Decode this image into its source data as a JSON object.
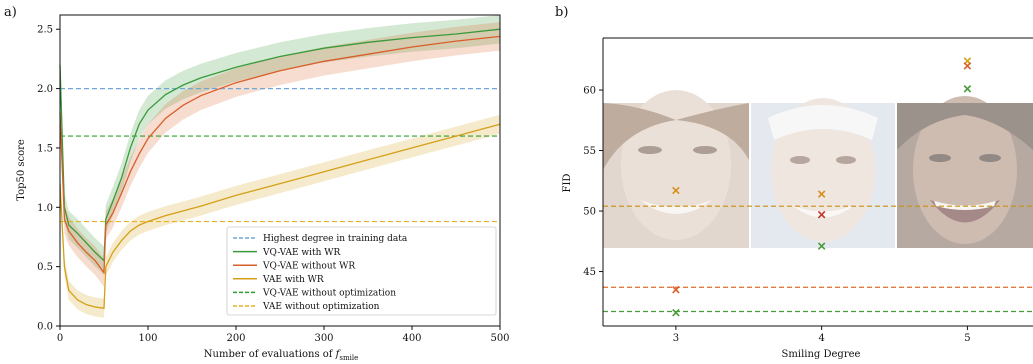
{
  "panel_labels": {
    "a": "a)",
    "b": "b)"
  },
  "chart_data": [
    {
      "type": "line",
      "xlabel_prefix": "Number of evaluations of ",
      "xlabel_symbol": "f",
      "xlabel_subscript": "smile",
      "ylabel": "Top50 score",
      "xlim": [
        0,
        500
      ],
      "ylim": [
        0,
        2.62
      ],
      "xticks": [
        0,
        100,
        200,
        300,
        400,
        500
      ],
      "yticks": [
        0.0,
        0.5,
        1.0,
        1.5,
        2.0,
        2.5
      ],
      "ytick_labels": [
        "0.0",
        "0.5",
        "1.0",
        "1.5",
        "2.0",
        "2.5"
      ],
      "grid": false,
      "legend_position": "lower-right",
      "hlines": [
        {
          "name": "Highest degree in training data",
          "y": 2.0,
          "color": "#6fa8d8",
          "dash": true
        },
        {
          "name": "VQ-VAE without optimization",
          "y": 1.6,
          "color": "#2ca02c",
          "dash": true
        },
        {
          "name": "VAE without optimization",
          "y": 0.88,
          "color": "#e6b422",
          "dash": true
        }
      ],
      "series": [
        {
          "name": "VQ-VAE with WR",
          "color": "#3a9a3a",
          "x": [
            0,
            5,
            10,
            20,
            30,
            40,
            50,
            52,
            60,
            70,
            80,
            90,
            100,
            120,
            140,
            160,
            200,
            250,
            300,
            350,
            400,
            450,
            500
          ],
          "y": [
            2.2,
            1.0,
            0.85,
            0.78,
            0.7,
            0.62,
            0.55,
            0.9,
            1.05,
            1.25,
            1.5,
            1.7,
            1.82,
            1.95,
            2.03,
            2.09,
            2.18,
            2.27,
            2.34,
            2.39,
            2.43,
            2.46,
            2.5
          ],
          "band": 0.12
        },
        {
          "name": "VQ-VAE without WR",
          "color": "#d95f2a",
          "x": [
            0,
            5,
            10,
            20,
            30,
            40,
            50,
            52,
            60,
            70,
            80,
            90,
            100,
            120,
            140,
            160,
            200,
            250,
            300,
            350,
            400,
            450,
            500
          ],
          "y": [
            1.8,
            0.9,
            0.8,
            0.7,
            0.62,
            0.55,
            0.45,
            0.85,
            0.95,
            1.12,
            1.3,
            1.45,
            1.58,
            1.75,
            1.86,
            1.94,
            2.05,
            2.15,
            2.23,
            2.29,
            2.35,
            2.4,
            2.44
          ],
          "band": 0.12
        },
        {
          "name": "VAE with WR",
          "color": "#d4a017",
          "x": [
            0,
            5,
            10,
            20,
            30,
            40,
            50,
            52,
            60,
            70,
            80,
            90,
            100,
            120,
            140,
            160,
            200,
            250,
            300,
            350,
            400,
            450,
            500
          ],
          "y": [
            1.2,
            0.5,
            0.3,
            0.22,
            0.18,
            0.16,
            0.15,
            0.5,
            0.62,
            0.72,
            0.8,
            0.85,
            0.88,
            0.93,
            0.97,
            1.01,
            1.1,
            1.2,
            1.3,
            1.4,
            1.5,
            1.6,
            1.7
          ],
          "band": 0.08
        }
      ]
    },
    {
      "type": "scatter",
      "xlabel": "Smiling Degree",
      "ylabel": "FID",
      "xlim": [
        2.5,
        5.45
      ],
      "ylim": [
        40.5,
        64.3
      ],
      "xticks": [
        3,
        4,
        5
      ],
      "yticks": [
        45,
        50,
        55,
        60
      ],
      "grid": false,
      "hlines": [
        {
          "y": 50.4,
          "color": "#c8900a"
        },
        {
          "y": 43.7,
          "color": "#e06b2c"
        },
        {
          "y": 41.7,
          "color": "#4a9a3a"
        }
      ],
      "points": [
        {
          "x": 3,
          "y": 51.7,
          "color": "#d4901a"
        },
        {
          "x": 3,
          "y": 43.5,
          "color": "#d95f2a"
        },
        {
          "x": 3,
          "y": 41.6,
          "color": "#4a9a3a"
        },
        {
          "x": 4,
          "y": 51.4,
          "color": "#d4901a"
        },
        {
          "x": 4,
          "y": 49.7,
          "color": "#c0392b"
        },
        {
          "x": 4,
          "y": 47.1,
          "color": "#4a9a3a"
        },
        {
          "x": 5,
          "y": 62.4,
          "color": "#d4a017"
        },
        {
          "x": 5,
          "y": 62.0,
          "color": "#d95f2a"
        },
        {
          "x": 5,
          "y": 60.1,
          "color": "#4a9a3a"
        }
      ]
    }
  ]
}
